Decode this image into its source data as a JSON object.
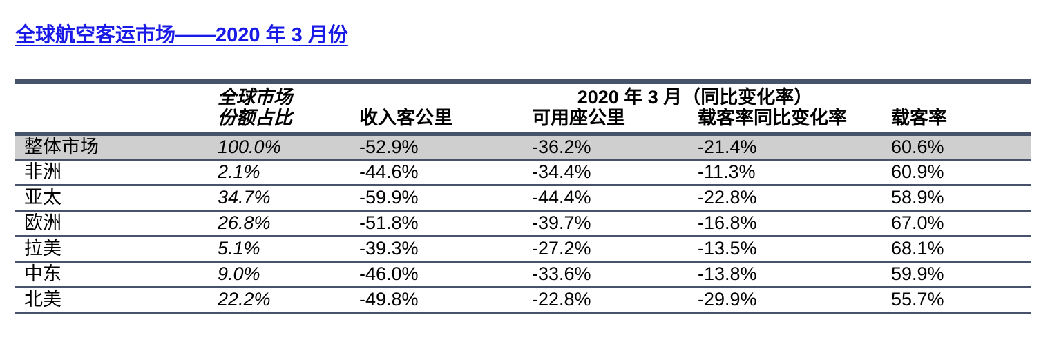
{
  "page": {
    "title": "全球航空客运市场——2020 年 3 月份"
  },
  "colors": {
    "title_blue": "#1A1AE6",
    "table_border": "#47536A",
    "highlight_row_bg": "#D0CFCF"
  },
  "table": {
    "group_header": "2020 年 3 月（同比变化率）",
    "share_header_line1": "全球市场",
    "share_header_line2": "份额占比",
    "column_headers": {
      "rpk": "收入客公里",
      "ask": "可用座公里",
      "plf_change": "载客率同比变化率",
      "plf": "载客率"
    },
    "rows": [
      {
        "region": "整体市场",
        "share": "100.0%",
        "rpk": "-52.9%",
        "ask": "-36.2%",
        "plf_change": "-21.4%",
        "plf": "60.6%"
      },
      {
        "region": "非洲",
        "share": "2.1%",
        "rpk": "-44.6%",
        "ask": "-34.4%",
        "plf_change": "-11.3%",
        "plf": "60.9%"
      },
      {
        "region": "亚太",
        "share": "34.7%",
        "rpk": "-59.9%",
        "ask": "-44.4%",
        "plf_change": "-22.8%",
        "plf": "58.9%"
      },
      {
        "region": "欧洲",
        "share": "26.8%",
        "rpk": "-51.8%",
        "ask": "-39.7%",
        "plf_change": "-16.8%",
        "plf": "67.0%"
      },
      {
        "region": "拉美",
        "share": "5.1%",
        "rpk": "-39.3%",
        "ask": "-27.2%",
        "plf_change": "-13.5%",
        "plf": "68.1%"
      },
      {
        "region": "中东",
        "share": "9.0%",
        "rpk": "-46.0%",
        "ask": "-33.6%",
        "plf_change": "-13.8%",
        "plf": "59.9%"
      },
      {
        "region": "北美",
        "share": "22.2%",
        "rpk": "-49.8%",
        "ask": "-22.8%",
        "plf_change": "-29.9%",
        "plf": "55.7%"
      }
    ]
  }
}
